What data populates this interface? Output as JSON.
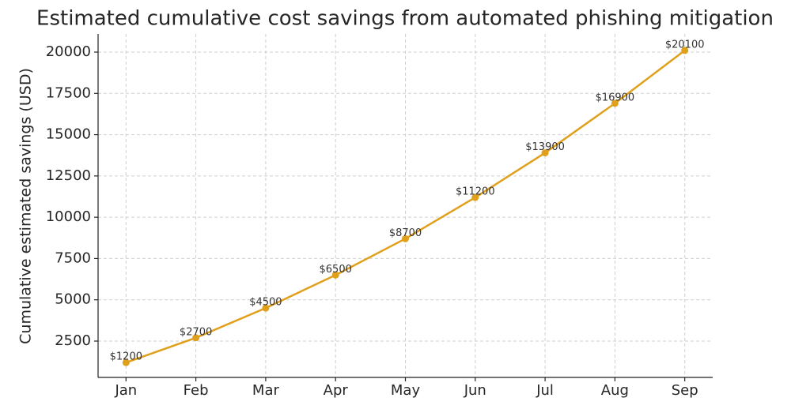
{
  "chart_data": {
    "type": "line",
    "title": "Estimated cumulative cost savings from automated phishing mitigation",
    "y_label": "Cumulative estimated savings (USD)",
    "categories": [
      "Jan",
      "Feb",
      "Mar",
      "Apr",
      "May",
      "Jun",
      "Jul",
      "Aug",
      "Sep"
    ],
    "values": [
      1200,
      2700,
      4500,
      6500,
      8700,
      11200,
      13900,
      16900,
      20100
    ],
    "value_labels": [
      "$1200",
      "$2700",
      "$4500",
      "$6500",
      "$8700",
      "$11200",
      "$13900",
      "$16900",
      "$20100"
    ],
    "color": "#e0a01c",
    "ylim": [
      300,
      21100
    ],
    "yticks": [
      2500,
      5000,
      7500,
      10000,
      12500,
      15000,
      17500,
      20000
    ],
    "grid": true
  }
}
